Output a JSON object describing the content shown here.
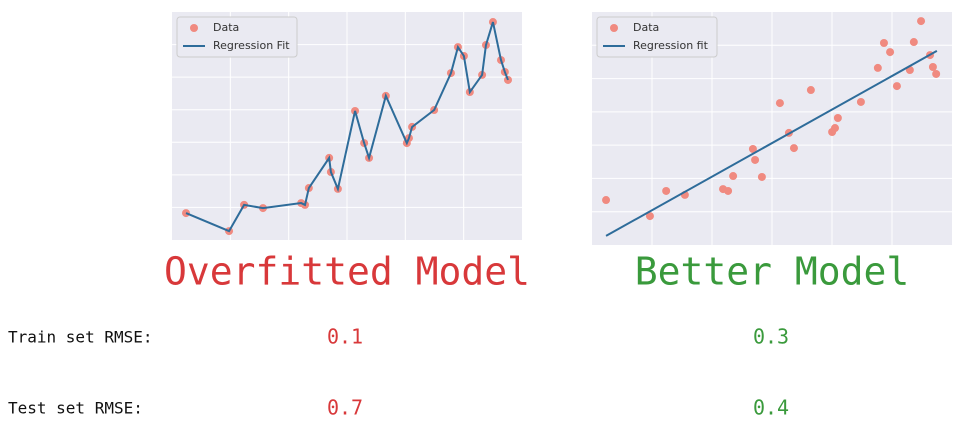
{
  "chart_data": [
    {
      "type": "scatter",
      "title": "Overfitted Model",
      "title_color": "#d8383a",
      "xlim": [
        0,
        10
      ],
      "ylim": [
        0,
        10
      ],
      "grid": true,
      "legend": "upper left",
      "series": [
        {
          "name": "Data",
          "type": "scatter",
          "color": "#f08a80",
          "x": [
            0.4,
            1.63,
            2.06,
            2.6,
            3.69,
            3.8,
            3.91,
            4.49,
            4.54,
            4.74,
            5.23,
            5.49,
            5.63,
            6.11,
            6.71,
            6.77,
            6.86,
            7.49,
            7.97,
            8.17,
            8.34,
            8.51,
            8.86,
            8.97,
            9.17,
            9.4,
            9.51,
            9.6
          ],
          "values": [
            1.18,
            0.39,
            1.54,
            1.4,
            1.62,
            1.54,
            2.28,
            3.6,
            2.98,
            2.24,
            5.66,
            4.25,
            3.6,
            6.32,
            4.25,
            4.47,
            4.96,
            5.7,
            7.32,
            8.46,
            8.07,
            6.49,
            7.24,
            8.55,
            9.56,
            7.89,
            7.37,
            7.02
          ]
        },
        {
          "name": "Regression Fit",
          "type": "line",
          "color": "#2e6c9a",
          "x": [
            0.4,
            1.63,
            2.06,
            2.6,
            3.69,
            3.8,
            3.91,
            4.49,
            4.54,
            4.74,
            5.23,
            5.49,
            5.63,
            6.11,
            6.71,
            6.77,
            6.86,
            7.49,
            7.97,
            8.17,
            8.34,
            8.51,
            8.86,
            8.97,
            9.17,
            9.4,
            9.51,
            9.6
          ],
          "values": [
            1.18,
            0.39,
            1.54,
            1.4,
            1.62,
            1.54,
            2.28,
            3.6,
            2.98,
            2.24,
            5.66,
            4.25,
            3.6,
            6.32,
            4.25,
            4.47,
            4.96,
            5.7,
            7.32,
            8.46,
            8.07,
            6.49,
            7.24,
            8.55,
            9.56,
            7.89,
            7.37,
            7.02
          ]
        }
      ]
    },
    {
      "type": "scatter",
      "title": "Better Model",
      "title_color": "#3a9a3c",
      "xlim": [
        0,
        10
      ],
      "ylim": [
        0,
        10
      ],
      "grid": true,
      "legend": "upper left",
      "series": [
        {
          "name": "Data",
          "type": "scatter",
          "color": "#f08a80",
          "x": [
            0.39,
            1.61,
            2.06,
            2.58,
            3.64,
            3.78,
            3.92,
            4.47,
            4.53,
            4.72,
            5.22,
            5.47,
            5.61,
            6.08,
            6.67,
            6.75,
            6.83,
            7.47,
            7.94,
            8.11,
            8.28,
            8.47,
            8.83,
            8.94,
            9.14,
            9.39,
            9.47,
            9.56
          ],
          "values": [
            1.93,
            1.24,
            2.32,
            2.15,
            2.4,
            2.32,
            2.96,
            4.12,
            3.65,
            2.92,
            6.09,
            4.81,
            4.16,
            6.65,
            4.85,
            5.02,
            5.45,
            6.14,
            7.6,
            8.67,
            8.28,
            6.82,
            7.51,
            8.71,
            9.61,
            8.15,
            7.64,
            7.34
          ]
        },
        {
          "name": "Regression fit",
          "type": "line",
          "color": "#2e6c9a",
          "x": [
            0.39,
            9.58
          ],
          "values": [
            0.39,
            8.33
          ]
        }
      ]
    }
  ],
  "table": {
    "rows": [
      [
        "Train set RMSE:",
        "0.1",
        "0.3"
      ],
      [
        "Test set RMSE:",
        "0.7",
        "0.4"
      ]
    ]
  }
}
